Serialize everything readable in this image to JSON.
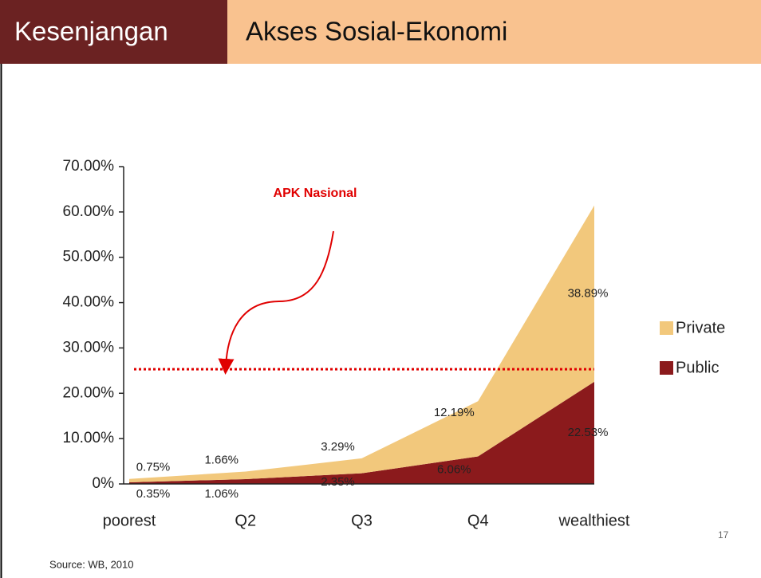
{
  "header": {
    "label": "Kesenjangan",
    "title": "Akses Sosial-Ekonomi"
  },
  "chart_data": {
    "type": "stacked_area",
    "categories": [
      "poorest",
      "Q2",
      "Q3",
      "Q4",
      "wealthiest"
    ],
    "series": [
      {
        "name": "Public",
        "color": "#8b1a1c",
        "values": [
          0.35,
          1.06,
          2.35,
          6.06,
          22.53
        ],
        "value_labels": [
          "0.35%",
          "1.06%",
          "2.35%",
          "6.06%",
          "22.53%"
        ]
      },
      {
        "name": "Private",
        "color": "#f2c87c",
        "values": [
          0.75,
          1.66,
          3.29,
          12.19,
          38.89
        ],
        "value_labels": [
          "0.75%",
          "1.66%",
          "3.29%",
          "12.19%",
          "38.89%"
        ]
      }
    ],
    "ylim": [
      0,
      70
    ],
    "yticks": [
      {
        "value": 0,
        "label": "0%"
      },
      {
        "value": 10,
        "label": "10.00%"
      },
      {
        "value": 20,
        "label": "20.00%"
      },
      {
        "value": 30,
        "label": "30.00%"
      },
      {
        "value": 40,
        "label": "40.00%"
      },
      {
        "value": 50,
        "label": "50.00%"
      },
      {
        "value": 60,
        "label": "60.00%"
      },
      {
        "value": 70,
        "label": "70.00%"
      }
    ],
    "reference_line": {
      "label": "APK Nasional",
      "value": 25.3,
      "color": "#e00000"
    },
    "legend": "right"
  },
  "footer": {
    "source": "Source: WB, 2010",
    "page": "17"
  }
}
